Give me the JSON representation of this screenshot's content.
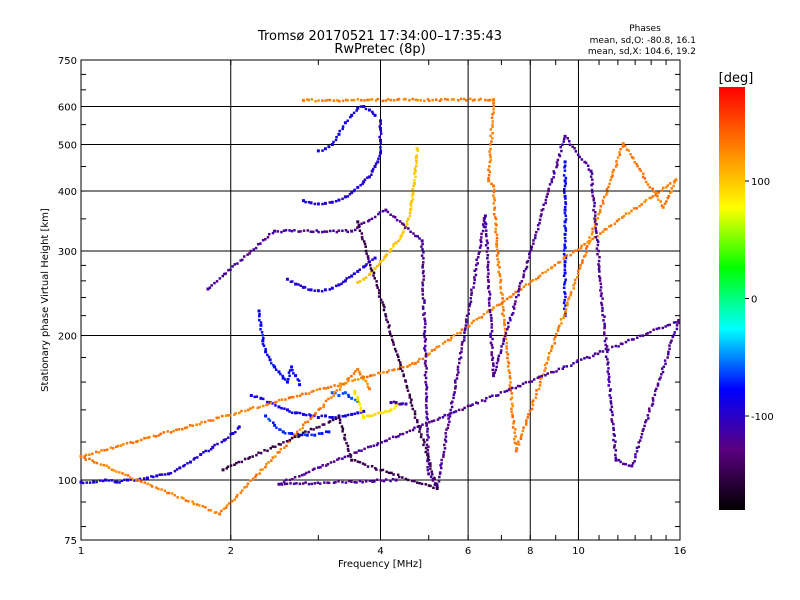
{
  "chart_data": {
    "type": "scatter",
    "title": "Tromsø 20170521 17:34:00–17:35:43",
    "subtitle": "RwPretec (8p)",
    "phase_box": {
      "heading": "Phases",
      "line_o": "mean, sd,O: -80.8, 16.1",
      "line_x": "mean, sd,X: 104.6, 19.2"
    },
    "xlabel": "Frequency [MHz]",
    "ylabel": "Stationary phase Virtual Height [km]",
    "x_scale": "log",
    "y_scale": "log",
    "xlim": [
      1,
      16
    ],
    "ylim": [
      75,
      750
    ],
    "x_ticks": [
      {
        "v": 1,
        "label": "1"
      },
      {
        "v": 2,
        "label": "2"
      },
      {
        "v": 4,
        "label": "4"
      },
      {
        "v": 6,
        "label": "6"
      },
      {
        "v": 8,
        "label": "8"
      },
      {
        "v": 10,
        "label": "10"
      },
      {
        "v": 16,
        "label": "16"
      }
    ],
    "x_grid": [
      2,
      4,
      6,
      8,
      10
    ],
    "y_ticks": [
      {
        "v": 75,
        "label": "75"
      },
      {
        "v": 100,
        "label": "100"
      },
      {
        "v": 200,
        "label": "200"
      },
      {
        "v": 300,
        "label": "300"
      },
      {
        "v": 400,
        "label": "400"
      },
      {
        "v": 500,
        "label": "500"
      },
      {
        "v": 600,
        "label": "600"
      },
      {
        "v": 750,
        "label": "750"
      }
    ],
    "y_grid": [
      100,
      200,
      300,
      400,
      500,
      600
    ],
    "grid": true,
    "colorbar": {
      "label": "[deg]",
      "range": [
        -180,
        180
      ],
      "ticks": [
        {
          "v": 100,
          "label": "100"
        },
        {
          "v": 0,
          "label": "0"
        },
        {
          "v": -100,
          "label": "-100"
        }
      ],
      "colors": [
        "#000000",
        "#5a0080",
        "#0000ff",
        "#00ffff",
        "#00ff00",
        "#ffff00",
        "#ff8000",
        "#ff0000"
      ]
    },
    "traces": [
      {
        "name": "",
        "phase": -95,
        "points": [
          [
            1.0,
            99
          ],
          [
            1.06,
            99
          ],
          [
            1.12,
            100
          ],
          [
            1.18,
            99
          ],
          [
            1.24,
            100
          ],
          [
            1.3,
            100
          ],
          [
            1.36,
            101
          ],
          [
            1.42,
            102
          ],
          [
            1.5,
            103
          ],
          [
            1.58,
            106
          ],
          [
            1.66,
            109
          ],
          [
            1.74,
            113
          ],
          [
            1.84,
            117
          ],
          [
            1.94,
            121
          ],
          [
            2.02,
            125
          ],
          [
            2.08,
            129
          ]
        ]
      },
      {
        "name": "",
        "phase": -80,
        "points": [
          [
            2.28,
            225
          ],
          [
            2.3,
            210
          ],
          [
            2.32,
            195
          ],
          [
            2.35,
            185
          ],
          [
            2.4,
            178
          ],
          [
            2.45,
            172
          ],
          [
            2.5,
            168
          ],
          [
            2.55,
            163
          ],
          [
            2.6,
            160
          ],
          [
            2.65,
            172
          ],
          [
            2.7,
            165
          ],
          [
            2.75,
            158
          ]
        ]
      },
      {
        "name": "",
        "phase": -88,
        "points": [
          [
            2.2,
            150
          ],
          [
            2.3,
            148
          ],
          [
            2.4,
            145
          ],
          [
            2.5,
            142
          ],
          [
            2.6,
            140
          ],
          [
            2.7,
            138
          ],
          [
            2.8,
            137
          ],
          [
            2.9,
            136
          ],
          [
            3.0,
            135
          ],
          [
            3.1,
            136
          ],
          [
            3.2,
            135
          ],
          [
            3.3,
            136
          ],
          [
            3.4,
            136
          ],
          [
            3.5,
            137
          ],
          [
            3.6,
            138
          ],
          [
            3.7,
            139
          ]
        ]
      },
      {
        "name": "",
        "phase": -72,
        "points": [
          [
            2.35,
            136
          ],
          [
            2.45,
            130
          ],
          [
            2.55,
            126
          ],
          [
            2.65,
            125
          ],
          [
            2.75,
            124
          ],
          [
            2.85,
            124
          ],
          [
            2.95,
            124
          ],
          [
            3.05,
            125
          ],
          [
            3.15,
            126
          ]
        ]
      },
      {
        "name": "",
        "phase": -60,
        "points": [
          [
            3.2,
            152
          ],
          [
            3.3,
            150
          ],
          [
            3.4,
            152
          ],
          [
            3.5,
            148
          ],
          [
            3.6,
            146
          ]
        ]
      },
      {
        "name": "",
        "phase": 90,
        "points": [
          [
            3.55,
            153
          ],
          [
            3.6,
            147
          ],
          [
            3.7,
            135
          ],
          [
            3.8,
            136
          ],
          [
            3.9,
            137
          ],
          [
            4.0,
            138
          ],
          [
            4.1,
            139
          ],
          [
            4.2,
            140
          ],
          [
            4.3,
            143
          ]
        ]
      },
      {
        "name": "",
        "phase": -110,
        "points": [
          [
            4.2,
            145
          ],
          [
            4.3,
            145
          ],
          [
            4.4,
            144
          ],
          [
            4.5,
            144
          ]
        ]
      },
      {
        "name": "",
        "phase": -92,
        "points": [
          [
            2.6,
            262
          ],
          [
            2.7,
            256
          ],
          [
            2.8,
            252
          ],
          [
            2.9,
            249
          ],
          [
            3.0,
            248
          ],
          [
            3.1,
            249
          ],
          [
            3.2,
            251
          ],
          [
            3.3,
            255
          ],
          [
            3.4,
            260
          ],
          [
            3.5,
            266
          ],
          [
            3.6,
            272
          ],
          [
            3.7,
            278
          ],
          [
            3.8,
            285
          ],
          [
            3.9,
            290
          ]
        ]
      },
      {
        "name": "",
        "phase": 100,
        "points": [
          [
            3.6,
            258
          ],
          [
            3.7,
            262
          ],
          [
            3.8,
            268
          ],
          [
            3.9,
            276
          ],
          [
            4.0,
            285
          ],
          [
            4.1,
            293
          ],
          [
            4.2,
            302
          ],
          [
            4.3,
            312
          ],
          [
            4.4,
            322
          ],
          [
            4.5,
            338
          ],
          [
            4.55,
            350
          ],
          [
            4.6,
            366
          ],
          [
            4.62,
            380
          ],
          [
            4.65,
            395
          ],
          [
            4.68,
            415
          ],
          [
            4.7,
            440
          ],
          [
            4.72,
            470
          ],
          [
            4.74,
            490
          ]
        ]
      },
      {
        "name": "",
        "phase": -95,
        "points": [
          [
            2.8,
            382
          ],
          [
            2.9,
            378
          ],
          [
            3.0,
            376
          ],
          [
            3.1,
            377
          ],
          [
            3.2,
            379
          ],
          [
            3.3,
            383
          ],
          [
            3.4,
            389
          ],
          [
            3.5,
            397
          ],
          [
            3.6,
            407
          ],
          [
            3.7,
            418
          ],
          [
            3.8,
            428
          ],
          [
            3.85,
            440
          ],
          [
            3.9,
            450
          ],
          [
            3.95,
            460
          ],
          [
            4.0,
            480
          ],
          [
            4.0,
            510
          ],
          [
            4.0,
            540
          ],
          [
            4.0,
            560
          ]
        ]
      },
      {
        "name": "",
        "phase": -88,
        "points": [
          [
            3.0,
            485
          ],
          [
            3.1,
            490
          ],
          [
            3.2,
            500
          ],
          [
            3.3,
            525
          ],
          [
            3.4,
            555
          ],
          [
            3.5,
            575
          ],
          [
            3.6,
            595
          ],
          [
            3.7,
            600
          ],
          [
            3.8,
            590
          ],
          [
            3.9,
            575
          ]
        ]
      },
      {
        "name": "",
        "phase": -80,
        "points": [
          [
            9.4,
            460
          ],
          [
            9.4,
            420
          ],
          [
            9.4,
            390
          ],
          [
            9.4,
            365
          ],
          [
            9.4,
            345
          ],
          [
            9.4,
            325
          ],
          [
            9.4,
            305
          ],
          [
            9.4,
            285
          ],
          [
            9.4,
            270
          ],
          [
            9.4,
            220
          ]
        ]
      },
      {
        "name": "",
        "phase": 130,
        "points": [
          [
            2.8,
            618
          ],
          [
            6.75,
            620
          ],
          [
            6.75,
            610
          ],
          [
            6.6,
            420
          ],
          [
            6.75,
            410
          ],
          [
            6.85,
            310
          ],
          [
            7.5,
            115
          ],
          [
            12.3,
            502
          ],
          [
            14.8,
            370
          ],
          [
            15.7,
            422
          ],
          [
            4.7,
            175
          ],
          [
            1.0,
            112
          ],
          [
            1.9,
            85
          ],
          [
            3.6,
            170
          ],
          [
            3.8,
            155
          ]
        ]
      },
      {
        "name": "",
        "phase": -120,
        "points": [
          [
            1.8,
            250
          ],
          [
            2.45,
            330
          ],
          [
            3.5,
            330
          ],
          [
            4.1,
            365
          ],
          [
            4.85,
            315
          ],
          [
            5.0,
            103
          ],
          [
            5.2,
            97
          ],
          [
            6.5,
            355
          ],
          [
            6.75,
            165
          ],
          [
            9.4,
            520
          ],
          [
            10.6,
            440
          ],
          [
            11.9,
            110
          ],
          [
            12.8,
            107
          ],
          [
            15.9,
            215
          ],
          [
            2.5,
            98
          ],
          [
            4.3,
            100
          ]
        ]
      },
      {
        "name": "",
        "phase": -150,
        "points": [
          [
            1.93,
            105
          ],
          [
            3.3,
            135
          ],
          [
            3.5,
            110
          ],
          [
            5.2,
            96
          ],
          [
            3.6,
            345
          ]
        ]
      }
    ]
  }
}
